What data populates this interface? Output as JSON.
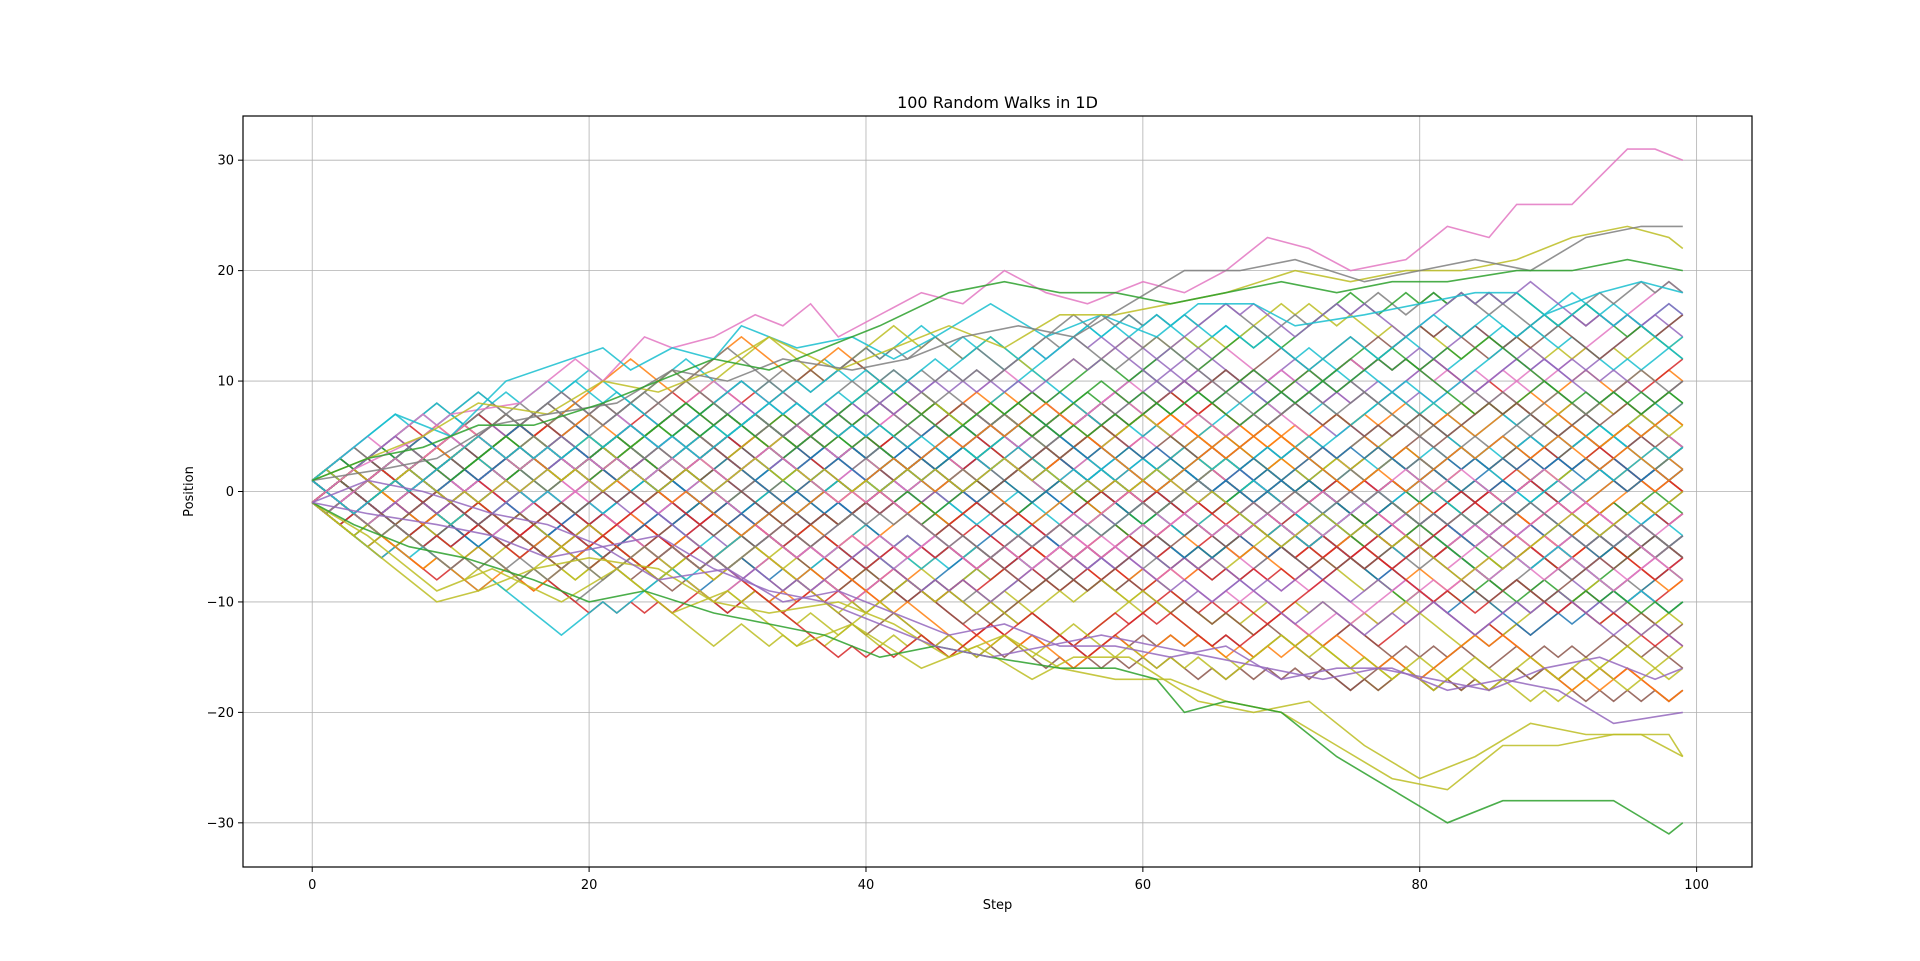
{
  "chart_data": {
    "type": "line",
    "title": "100 Random Walks in 1D",
    "xlabel": "Step",
    "ylabel": "Position",
    "xlim": [
      -5,
      104
    ],
    "ylim": [
      -34,
      34
    ],
    "grid": true,
    "x_ticks": [
      0,
      20,
      40,
      60,
      80,
      100
    ],
    "y_ticks": [
      -30,
      -20,
      -10,
      0,
      10,
      20,
      30
    ],
    "x_tick_labels": [
      "0",
      "20",
      "40",
      "60",
      "80",
      "100"
    ],
    "y_tick_labels": [
      "−30",
      "−20",
      "−10",
      "0",
      "10",
      "20",
      "30"
    ],
    "colors": [
      "#1f77b4",
      "#ff7f0e",
      "#2ca02c",
      "#d62728",
      "#9467bd",
      "#8c564b",
      "#e377c2",
      "#7f7f7f",
      "#bcbd22",
      "#17becf"
    ],
    "num_series": 100,
    "steps": 100,
    "highlighted_walks": [
      {
        "x": [
          0,
          3,
          8,
          10,
          15,
          19,
          21,
          24,
          26,
          29,
          32,
          34,
          36,
          38,
          44,
          47,
          50,
          53,
          56,
          60,
          63,
          66,
          69,
          72,
          75,
          79,
          82,
          85,
          87,
          91,
          95,
          97,
          99
        ],
        "y": [
          -1,
          2,
          5,
          7,
          8,
          12,
          10,
          14,
          13,
          14,
          16,
          15,
          17,
          14,
          18,
          17,
          20,
          18,
          17,
          19,
          18,
          20,
          23,
          22,
          20,
          21,
          24,
          23,
          26,
          26,
          31,
          31,
          30
        ]
      },
      {
        "x": [
          0,
          6,
          10,
          14,
          21,
          23,
          26,
          29,
          31,
          35,
          39,
          42,
          45,
          49,
          53,
          57,
          61,
          64,
          68,
          71,
          76,
          80,
          84,
          87,
          89,
          93,
          96,
          99
        ],
        "y": [
          1,
          7,
          5,
          10,
          13,
          11,
          13,
          12,
          15,
          13,
          14,
          12,
          14,
          17,
          14,
          16,
          14,
          17,
          17,
          15,
          16,
          17,
          18,
          18,
          16,
          18,
          19,
          18
        ]
      },
      {
        "x": [
          0,
          4,
          9,
          13,
          18,
          22,
          26,
          30,
          35,
          39,
          44,
          48,
          52,
          55,
          59,
          64,
          68,
          72,
          76,
          80,
          84,
          88,
          92,
          96,
          99
        ],
        "y": [
          -1,
          -4,
          -9,
          -7,
          -10,
          -7,
          -11,
          -9,
          -14,
          -12,
          -16,
          -14,
          -17,
          -15,
          -15,
          -19,
          -20,
          -19,
          -23,
          -26,
          -24,
          -21,
          -22,
          -22,
          -24
        ]
      },
      {
        "x": [
          0,
          5,
          9,
          12,
          16,
          20,
          25,
          29,
          33,
          38,
          42,
          46,
          50,
          54,
          58,
          62,
          66,
          70,
          74,
          78,
          82,
          86,
          90,
          94,
          98,
          99
        ],
        "y": [
          -1,
          -6,
          -10,
          -9,
          -7,
          -6,
          -7,
          -10,
          -11,
          -10,
          -12,
          -15,
          -13,
          -16,
          -17,
          -17,
          -19,
          -20,
          -23,
          -26,
          -27,
          -23,
          -23,
          -22,
          -22,
          -24
        ]
      },
      {
        "x": [
          0,
          3,
          7,
          11,
          16,
          20,
          24,
          29,
          33,
          37,
          41,
          45,
          49,
          54,
          58,
          61,
          63,
          66,
          70,
          74,
          78,
          82,
          86,
          90,
          94,
          98,
          99
        ],
        "y": [
          -1,
          -3,
          -5,
          -6,
          -8,
          -10,
          -9,
          -11,
          -12,
          -13,
          -15,
          -14,
          -15,
          -16,
          -16,
          -17,
          -20,
          -19,
          -20,
          -24,
          -27,
          -30,
          -28,
          -28,
          -28,
          -31,
          -30
        ]
      },
      {
        "x": [
          0,
          4,
          8,
          12,
          17,
          21,
          25,
          29,
          33,
          38,
          42,
          46,
          50,
          54,
          58,
          62,
          66,
          71,
          75,
          79,
          83,
          87,
          91,
          95,
          98,
          99
        ],
        "y": [
          1,
          3,
          5,
          8,
          7,
          10,
          9,
          11,
          14,
          11,
          13,
          15,
          13,
          16,
          16,
          17,
          18,
          20,
          19,
          20,
          20,
          21,
          23,
          24,
          23,
          22
        ]
      },
      {
        "x": [
          0,
          5,
          9,
          13,
          17,
          22,
          26,
          30,
          34,
          39,
          43,
          47,
          51,
          55,
          59,
          63,
          67,
          71,
          76,
          80,
          84,
          88,
          92,
          96,
          99
        ],
        "y": [
          1,
          2,
          3,
          6,
          7,
          8,
          11,
          10,
          12,
          11,
          12,
          14,
          15,
          14,
          17,
          20,
          20,
          21,
          19,
          20,
          21,
          20,
          23,
          24,
          24
        ]
      },
      {
        "x": [
          0,
          4,
          9,
          13,
          17,
          21,
          25,
          30,
          34,
          38,
          42,
          46,
          50,
          54,
          58,
          62,
          66,
          70,
          74,
          78,
          82,
          86,
          90,
          94,
          99
        ],
        "y": [
          -1,
          -2,
          -3,
          -4,
          -6,
          -5,
          -8,
          -7,
          -10,
          -9,
          -11,
          -13,
          -12,
          -14,
          -14,
          -15,
          -14,
          -17,
          -16,
          -16,
          -18,
          -17,
          -18,
          -21,
          -20
        ]
      },
      {
        "x": [
          0,
          4,
          8,
          12,
          16,
          21,
          25,
          29,
          33,
          37,
          41,
          46,
          50,
          54,
          58,
          62,
          66,
          70,
          74,
          78,
          82,
          87,
          91,
          95,
          99
        ],
        "y": [
          1,
          3,
          4,
          6,
          6,
          8,
          10,
          12,
          11,
          13,
          15,
          18,
          19,
          18,
          18,
          17,
          18,
          19,
          18,
          19,
          19,
          20,
          20,
          21,
          20
        ]
      },
      {
        "x": [
          0,
          4,
          8,
          13,
          17,
          21,
          25,
          29,
          33,
          37,
          41,
          45,
          49,
          53,
          57,
          61,
          65,
          69,
          73,
          77,
          81,
          85,
          89,
          93,
          97,
          99
        ],
        "y": [
          -1,
          1,
          0,
          -2,
          -3,
          -5,
          -4,
          -7,
          -9,
          -10,
          -12,
          -14,
          -15,
          -14,
          -13,
          -14,
          -15,
          -16,
          -17,
          -16,
          -17,
          -18,
          -16,
          -15,
          -17,
          -16
        ]
      }
    ]
  }
}
